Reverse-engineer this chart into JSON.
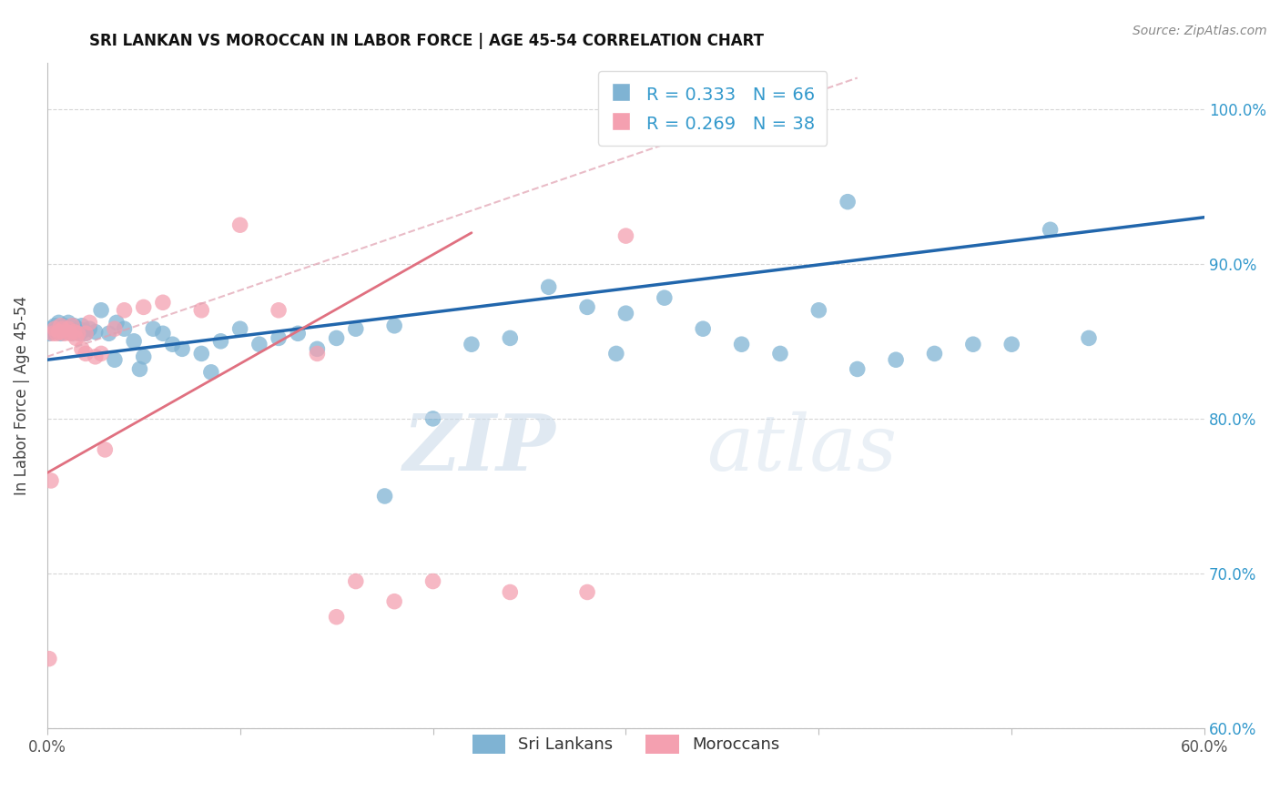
{
  "title": "SRI LANKAN VS MOROCCAN IN LABOR FORCE | AGE 45-54 CORRELATION CHART",
  "source": "Source: ZipAtlas.com",
  "ylabel": "In Labor Force | Age 45-54",
  "xlim": [
    0.0,
    0.6
  ],
  "ylim": [
    0.6,
    1.03
  ],
  "x_tick_positions": [
    0.0,
    0.1,
    0.2,
    0.3,
    0.4,
    0.5,
    0.6
  ],
  "x_tick_labels": [
    "0.0%",
    "",
    "",
    "",
    "",
    "",
    "60.0%"
  ],
  "y_tick_positions": [
    0.6,
    0.7,
    0.8,
    0.9,
    1.0
  ],
  "y_tick_labels": [
    "60.0%",
    "70.0%",
    "80.0%",
    "90.0%",
    "100.0%"
  ],
  "sri_lanka_color": "#7fb3d3",
  "moroccan_color": "#f4a0b0",
  "sri_lanka_line_color": "#2166ac",
  "moroccan_line_color": "#e07080",
  "ref_line_color": "#e0a0b0",
  "sri_lanka_R": 0.333,
  "sri_lanka_N": 66,
  "moroccan_R": 0.269,
  "moroccan_N": 38,
  "legend_label_sri": "Sri Lankans",
  "legend_label_mor": "Moroccans",
  "sri_lanka_x": [
    0.001,
    0.002,
    0.003,
    0.004,
    0.005,
    0.006,
    0.007,
    0.008,
    0.009,
    0.01,
    0.011,
    0.012,
    0.013,
    0.014,
    0.015,
    0.016,
    0.017,
    0.018,
    0.019,
    0.02,
    0.022,
    0.025,
    0.028,
    0.032,
    0.036,
    0.04,
    0.045,
    0.05,
    0.055,
    0.06,
    0.065,
    0.07,
    0.08,
    0.09,
    0.1,
    0.11,
    0.12,
    0.13,
    0.14,
    0.15,
    0.16,
    0.18,
    0.2,
    0.22,
    0.24,
    0.26,
    0.28,
    0.3,
    0.32,
    0.34,
    0.36,
    0.38,
    0.4,
    0.42,
    0.44,
    0.46,
    0.48,
    0.5,
    0.52,
    0.54,
    0.175,
    0.085,
    0.035,
    0.048,
    0.295,
    0.415
  ],
  "sri_lanka_y": [
    0.855,
    0.858,
    0.856,
    0.86,
    0.857,
    0.862,
    0.855,
    0.858,
    0.86,
    0.856,
    0.862,
    0.857,
    0.855,
    0.86,
    0.856,
    0.858,
    0.855,
    0.86,
    0.857,
    0.855,
    0.858,
    0.856,
    0.87,
    0.855,
    0.862,
    0.858,
    0.85,
    0.84,
    0.858,
    0.855,
    0.848,
    0.845,
    0.842,
    0.85,
    0.858,
    0.848,
    0.852,
    0.855,
    0.845,
    0.852,
    0.858,
    0.86,
    0.8,
    0.848,
    0.852,
    0.885,
    0.872,
    0.868,
    0.878,
    0.858,
    0.848,
    0.842,
    0.87,
    0.832,
    0.838,
    0.842,
    0.848,
    0.848,
    0.922,
    0.852,
    0.75,
    0.83,
    0.838,
    0.832,
    0.842,
    0.94
  ],
  "moroccan_x": [
    0.001,
    0.002,
    0.003,
    0.004,
    0.005,
    0.006,
    0.007,
    0.008,
    0.009,
    0.01,
    0.011,
    0.012,
    0.013,
    0.014,
    0.016,
    0.018,
    0.02,
    0.025,
    0.03,
    0.04,
    0.02,
    0.015,
    0.022,
    0.028,
    0.035,
    0.05,
    0.06,
    0.1,
    0.15,
    0.2,
    0.28,
    0.3,
    0.14,
    0.16,
    0.24,
    0.18,
    0.12,
    0.08
  ],
  "moroccan_y": [
    0.645,
    0.76,
    0.855,
    0.858,
    0.855,
    0.856,
    0.86,
    0.858,
    0.855,
    0.856,
    0.858,
    0.855,
    0.86,
    0.856,
    0.855,
    0.845,
    0.842,
    0.84,
    0.78,
    0.87,
    0.855,
    0.852,
    0.862,
    0.842,
    0.858,
    0.872,
    0.875,
    0.925,
    0.672,
    0.695,
    0.688,
    0.918,
    0.842,
    0.695,
    0.688,
    0.682,
    0.87,
    0.87
  ],
  "sri_lanka_reg": [
    0.0,
    0.6,
    0.838,
    0.93
  ],
  "moroccan_reg": [
    0.0,
    0.22,
    0.765,
    0.92
  ],
  "ref_line": [
    0.0,
    0.42,
    0.84,
    1.02
  ]
}
